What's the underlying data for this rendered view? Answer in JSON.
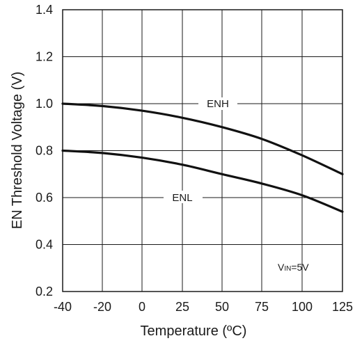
{
  "chart_data": {
    "type": "line",
    "title": "",
    "xlabel": "Temperature (ºC)",
    "ylabel": "EN Threshold Voltage (V)",
    "xlim": [
      -40,
      125
    ],
    "ylim": [
      0.2,
      1.4
    ],
    "grid": true,
    "x_ticks": [
      "-40",
      "-20",
      "0",
      "25",
      "50",
      "75",
      "100",
      "125"
    ],
    "y_ticks": [
      "0.2",
      "0.4",
      "0.6",
      "0.8",
      "1.0",
      "1.2",
      "1.4"
    ],
    "series": [
      {
        "name": "ENH",
        "x": [
          -40,
          -20,
          0,
          25,
          50,
          75,
          100,
          125
        ],
        "y": [
          1.0,
          0.99,
          0.97,
          0.94,
          0.9,
          0.85,
          0.78,
          0.7
        ]
      },
      {
        "name": "ENL",
        "x": [
          -40,
          -20,
          0,
          25,
          50,
          75,
          100,
          125
        ],
        "y": [
          0.8,
          0.79,
          0.77,
          0.74,
          0.7,
          0.66,
          0.61,
          0.54
        ]
      }
    ],
    "annotation": {
      "prefix": "V",
      "subscript": "IN",
      "suffix": "=5V"
    },
    "line_color": "#111111",
    "grid_color": "#1a1a1a"
  }
}
